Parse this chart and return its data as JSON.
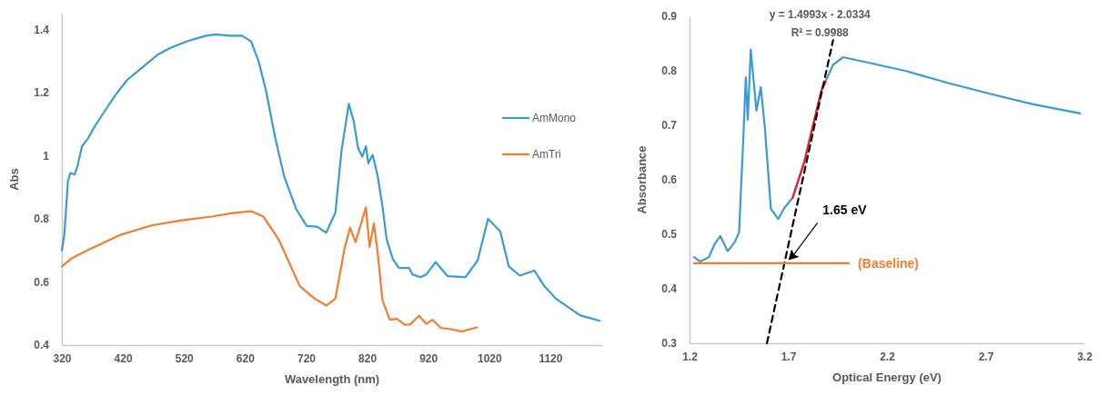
{
  "chart_data": [
    {
      "type": "line",
      "xlabel": "Wavelength (nm)",
      "ylabel": "Abs",
      "xlim": [
        320,
        1205
      ],
      "ylim": [
        0.4,
        1.45
      ],
      "xticks": [
        320,
        420,
        520,
        620,
        720,
        820,
        920,
        1020,
        1120
      ],
      "yticks": [
        0.4,
        0.6,
        0.8,
        1,
        1.2,
        1.4
      ],
      "legend": "right",
      "grid": false,
      "series": [
        {
          "name": "AmMono",
          "color": "#3a9ad9",
          "x": [
            320,
            324,
            330,
            334,
            341,
            346,
            353,
            363,
            373,
            388,
            407,
            427,
            452,
            477,
            496,
            526,
            556,
            573,
            595,
            615,
            630,
            642,
            654,
            669,
            684,
            704,
            721,
            738,
            753,
            768,
            778,
            790,
            798,
            805,
            812,
            818,
            822,
            829,
            837,
            845,
            852,
            862,
            872,
            889,
            894,
            907,
            917,
            932,
            952,
            981,
            1001,
            1018,
            1030,
            1038,
            1052,
            1070,
            1094,
            1109,
            1129,
            1169,
            1201
          ],
          "values": [
            0.7,
            0.75,
            0.92,
            0.945,
            0.94,
            0.97,
            1.03,
            1.055,
            1.09,
            1.135,
            1.19,
            1.24,
            1.28,
            1.32,
            1.34,
            1.363,
            1.38,
            1.384,
            1.38,
            1.38,
            1.362,
            1.3,
            1.21,
            1.06,
            0.935,
            0.83,
            0.777,
            0.775,
            0.756,
            0.82,
            1.015,
            1.164,
            1.11,
            1.025,
            0.997,
            1.03,
            0.976,
            1.003,
            0.938,
            0.841,
            0.735,
            0.673,
            0.644,
            0.644,
            0.624,
            0.615,
            0.624,
            0.663,
            0.618,
            0.615,
            0.668,
            0.8,
            0.776,
            0.76,
            0.649,
            0.62,
            0.636,
            0.59,
            0.547,
            0.494,
            0.477
          ]
        },
        {
          "name": "AmTri",
          "color": "#f47c30",
          "x": [
            320,
            338,
            368,
            417,
            467,
            516,
            566,
            595,
            630,
            650,
            675,
            710,
            734,
            753,
            768,
            783,
            792,
            801,
            818,
            824,
            831,
            837,
            845,
            857,
            869,
            882,
            891,
            905,
            917,
            927,
            941,
            955,
            975,
            1000
          ],
          "values": [
            0.649,
            0.677,
            0.706,
            0.75,
            0.779,
            0.795,
            0.807,
            0.817,
            0.824,
            0.807,
            0.735,
            0.586,
            0.547,
            0.525,
            0.547,
            0.706,
            0.772,
            0.726,
            0.836,
            0.711,
            0.785,
            0.697,
            0.543,
            0.48,
            0.483,
            0.464,
            0.466,
            0.493,
            0.467,
            0.48,
            0.454,
            0.451,
            0.443,
            0.456
          ]
        }
      ]
    },
    {
      "type": "line",
      "xlabel": "Optical Energy (eV)",
      "ylabel": "Absorbance",
      "xlim": [
        1.2,
        3.2
      ],
      "ylim": [
        0.3,
        0.9
      ],
      "xticks": [
        1.2,
        1.7,
        2.2,
        2.7,
        3.2
      ],
      "yticks": [
        0.3,
        0.4,
        0.5,
        0.6,
        0.7,
        0.8,
        0.9
      ],
      "legend": false,
      "grid": false,
      "annotations": [
        "y = 1.4993x - 2.0334",
        "R² = 0.9988",
        "1.65 eV"
      ],
      "series": [
        {
          "color": "#3a9ad9",
          "x": [
            1.222,
            1.254,
            1.298,
            1.327,
            1.356,
            1.393,
            1.43,
            1.451,
            1.473,
            1.485,
            1.495,
            1.51,
            1.539,
            1.561,
            1.582,
            1.612,
            1.649,
            1.678,
            1.722,
            1.78,
            1.868,
            1.927,
            1.978,
            2.079,
            2.293,
            2.507,
            2.721,
            2.936,
            3.179
          ],
          "values": [
            0.458,
            0.45,
            0.458,
            0.482,
            0.497,
            0.469,
            0.486,
            0.504,
            0.682,
            0.788,
            0.71,
            0.839,
            0.727,
            0.77,
            0.694,
            0.547,
            0.528,
            0.547,
            0.567,
            0.631,
            0.764,
            0.811,
            0.825,
            0.817,
            0.8,
            0.778,
            0.758,
            0.739,
            0.722
          ]
        },
        {
          "color": "#ff1a1a",
          "x": [
            1.722,
            1.78,
            1.868,
            1.89
          ],
          "values": [
            0.567,
            0.631,
            0.764,
            0.78
          ]
        },
        {
          "color": "#000000",
          "line_style": "dashed",
          "x": [
            1.592,
            1.927
          ],
          "values": [
            0.3,
            0.856
          ]
        },
        {
          "name": "(Baseline)",
          "color": "#f47c30",
          "x": [
            1.222,
            2.007
          ],
          "values": [
            0.447,
            0.447
          ]
        }
      ]
    }
  ]
}
